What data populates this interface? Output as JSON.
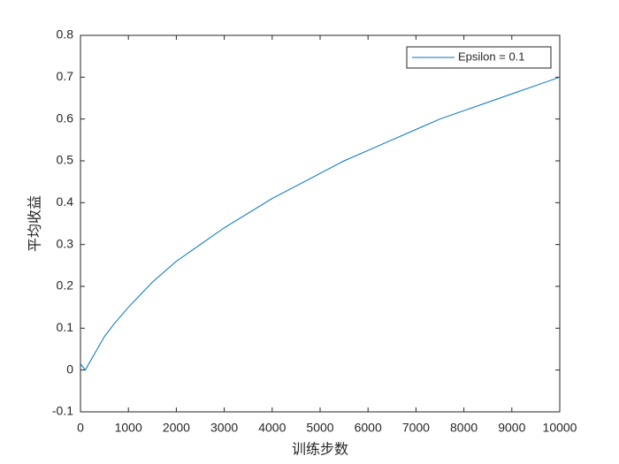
{
  "chart_data": {
    "type": "line",
    "xlabel": "训练步数",
    "ylabel": "平均收益",
    "x": [
      0,
      100,
      300,
      500,
      700,
      1000,
      1500,
      2000,
      2500,
      3000,
      3500,
      4000,
      4500,
      5000,
      5500,
      6000,
      6500,
      7000,
      7500,
      8000,
      8500,
      9000,
      9500,
      10000
    ],
    "series": [
      {
        "name": "Epsilon = 0.1",
        "color": "#0072bd",
        "values": [
          0.015,
          0.0,
          0.04,
          0.08,
          0.11,
          0.15,
          0.21,
          0.26,
          0.3,
          0.34,
          0.375,
          0.41,
          0.44,
          0.47,
          0.5,
          0.525,
          0.55,
          0.575,
          0.6,
          0.62,
          0.64,
          0.66,
          0.68,
          0.7
        ]
      }
    ],
    "xlim": [
      0,
      10000
    ],
    "xticks": [
      0,
      1000,
      2000,
      3000,
      4000,
      5000,
      6000,
      7000,
      8000,
      9000,
      10000
    ],
    "ylim": [
      -0.1,
      0.8
    ],
    "yticks": [
      -0.1,
      0,
      0.1,
      0.2,
      0.3,
      0.4,
      0.5,
      0.6,
      0.7,
      0.8
    ],
    "grid": false,
    "legend": "northeast"
  }
}
